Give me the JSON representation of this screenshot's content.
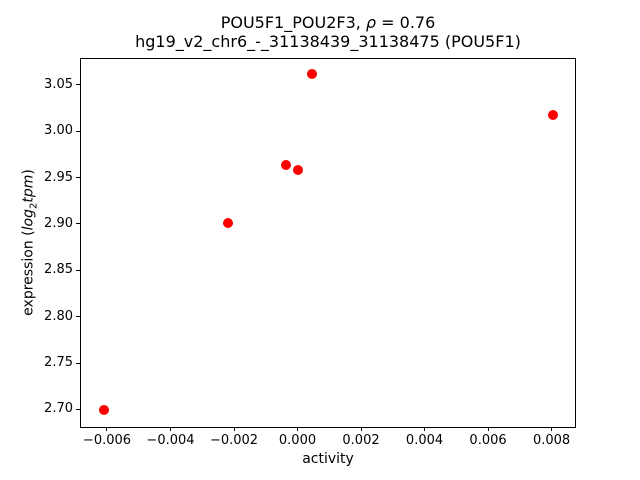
{
  "chart_data": {
    "type": "scatter",
    "title": {
      "line1_part1": "POU5F1_POU2F3, ",
      "line1_rho": "ρ",
      "line1_part2": " = 0.76",
      "line2": "hg19_v2_chr6_-_31138439_31138475 (POU5F1)"
    },
    "xlabel": "activity",
    "ylabel": {
      "part1": "expression (",
      "italic_log": "log",
      "subscript": "2",
      "italic_tpm": "tpm",
      "part2": ")"
    },
    "marker_color": "#ff0000",
    "axis_color": "#000000",
    "background_color": "#ffffff",
    "grid": false,
    "legend": null,
    "xlim": [
      -0.00685,
      0.00877
    ],
    "ylim": [
      2.681,
      3.079
    ],
    "xticks": {
      "values": [
        -0.006,
        -0.004,
        -0.002,
        0.0,
        0.002,
        0.004,
        0.006,
        0.008
      ],
      "labels": [
        "−0.006",
        "−0.004",
        "−0.002",
        "0.000",
        "0.002",
        "0.004",
        "0.006",
        "0.008"
      ]
    },
    "yticks": {
      "values": [
        2.7,
        2.75,
        2.8,
        2.85,
        2.9,
        2.95,
        3.0,
        3.05
      ],
      "labels": [
        "2.70",
        "2.75",
        "2.80",
        "2.85",
        "2.90",
        "2.95",
        "3.00",
        "3.05"
      ]
    },
    "points": [
      {
        "x": -0.0061,
        "y": 2.699
      },
      {
        "x": -0.00218,
        "y": 2.901
      },
      {
        "x": -0.00036,
        "y": 2.964
      },
      {
        "x": 0.0,
        "y": 2.958
      },
      {
        "x": 0.00046,
        "y": 3.062
      },
      {
        "x": 0.00806,
        "y": 3.017
      }
    ]
  }
}
